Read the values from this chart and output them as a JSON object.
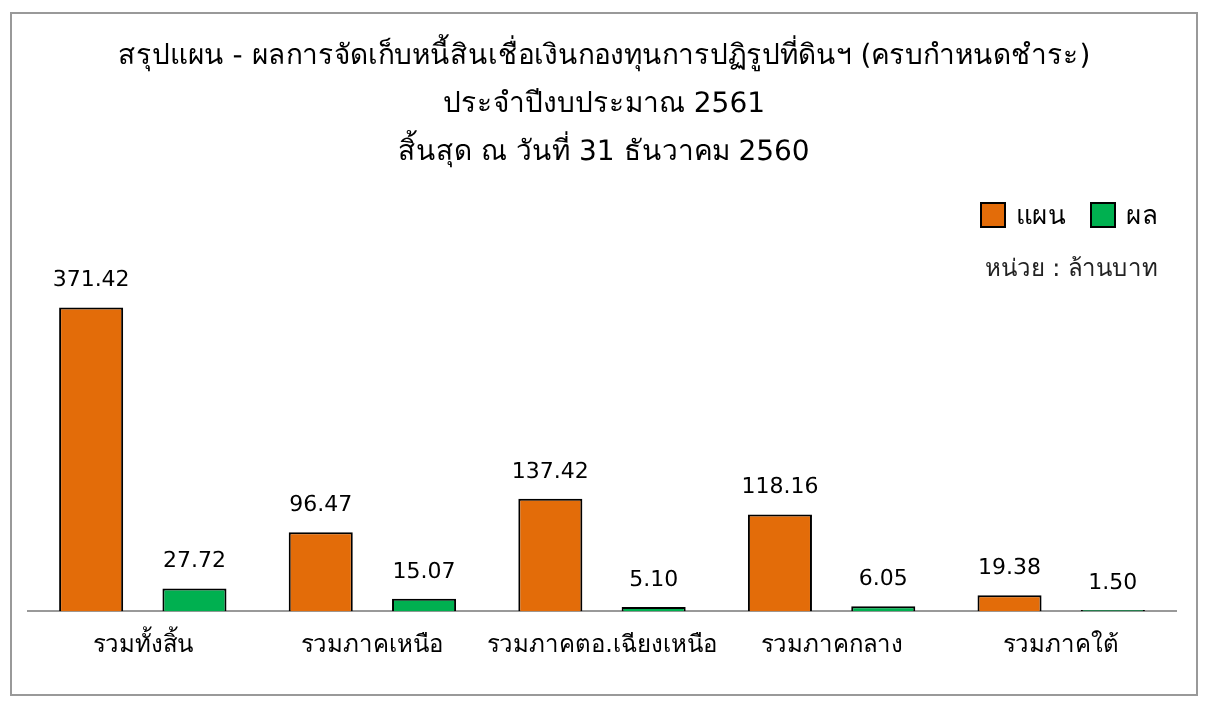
{
  "chart_data": {
    "type": "bar",
    "title": "สรุปแผน - ผลการจัดเก็บหนี้สินเชื่อเงินกองทุนการปฏิรูปที่ดินฯ (ครบกำหนดชำระ)",
    "subtitle": "ประจำปีงบประมาณ 2561\nสิ้นสุด ณ วันที่ 31 ธันวาคม 2560",
    "annotations": [
      "หน่วย : ล้านบาท"
    ],
    "categories": [
      "รวมทั้งสิ้น",
      "รวมภาคเหนือ",
      "รวมภาคตอ.เฉียงเหนือ",
      "รวมภาคกลาง",
      "รวมภาคใต้"
    ],
    "series": [
      {
        "name": "แผน",
        "color": "#e36c09",
        "values": [
          371.42,
          96.47,
          137.42,
          118.16,
          19.38
        ],
        "value_labels": [
          "371.42",
          "96.47",
          "137.42",
          "118.16",
          "19.38"
        ]
      },
      {
        "name": "ผล",
        "color": "#00b050",
        "values": [
          27.72,
          15.07,
          5.1,
          6.05,
          1.5
        ],
        "value_labels": [
          "27.72",
          "15.07",
          "5.10",
          "6.05",
          "1.50"
        ]
      }
    ],
    "legend": "top right",
    "tick_labels": "x",
    "grid": false
  }
}
